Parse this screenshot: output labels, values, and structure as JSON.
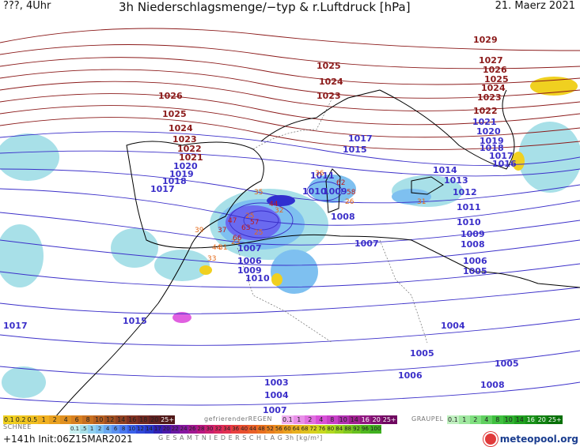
{
  "header": {
    "left": "???, 4Uhr",
    "center": "3h Niederschlagsmenge/−typ & r.Luftdruck [hPa]",
    "right": "21. Maerz 2021"
  },
  "colors": {
    "isobar_low": "#3b2fc9",
    "isobar_high": "#8b1a1a",
    "coastline": "#000000",
    "border": "#555555",
    "rain_light": "#a8e0e8",
    "rain_moderate": "#7ec0f0",
    "rain_heavy": "#6a6af0",
    "rain_very_heavy": "#3030d0",
    "snow_yellow": "#f0d020",
    "freezing_pink": "#e060e0"
  },
  "isobar_labels": [
    {
      "value": "1029",
      "tone": "high"
    },
    {
      "value": "1027",
      "tone": "high"
    },
    {
      "value": "1026",
      "tone": "high"
    },
    {
      "value": "1025",
      "tone": "high"
    },
    {
      "value": "1025",
      "tone": "high"
    },
    {
      "value": "1024",
      "tone": "high"
    },
    {
      "value": "1023",
      "tone": "high"
    },
    {
      "value": "1026",
      "tone": "high"
    },
    {
      "value": "1025",
      "tone": "high"
    },
    {
      "value": "1024",
      "tone": "high"
    },
    {
      "value": "1023",
      "tone": "high"
    },
    {
      "value": "1022",
      "tone": "high"
    },
    {
      "value": "1021",
      "tone": "high"
    },
    {
      "value": "1020",
      "tone": "low"
    },
    {
      "value": "1019",
      "tone": "low"
    },
    {
      "value": "1018",
      "tone": "low"
    },
    {
      "value": "1017",
      "tone": "low"
    },
    {
      "value": "1017",
      "tone": "low"
    },
    {
      "value": "1015",
      "tone": "low"
    },
    {
      "value": "1024",
      "tone": "high"
    },
    {
      "value": "1023",
      "tone": "high"
    },
    {
      "value": "1022",
      "tone": "high"
    },
    {
      "value": "1021",
      "tone": "low"
    },
    {
      "value": "1020",
      "tone": "low"
    },
    {
      "value": "1019",
      "tone": "low"
    },
    {
      "value": "1018",
      "tone": "low"
    },
    {
      "value": "1017",
      "tone": "low"
    },
    {
      "value": "1016",
      "tone": "low"
    },
    {
      "value": "1014",
      "tone": "low"
    },
    {
      "value": "1013",
      "tone": "low"
    },
    {
      "value": "1012",
      "tone": "low"
    },
    {
      "value": "1011",
      "tone": "low"
    },
    {
      "value": "1010",
      "tone": "low"
    },
    {
      "value": "1009",
      "tone": "low"
    },
    {
      "value": "1008",
      "tone": "low"
    },
    {
      "value": "1007",
      "tone": "low"
    },
    {
      "value": "1006",
      "tone": "low"
    },
    {
      "value": "1005",
      "tone": "low"
    },
    {
      "value": "1004",
      "tone": "low"
    },
    {
      "value": "1011",
      "tone": "low"
    },
    {
      "value": "1010",
      "tone": "low"
    },
    {
      "value": "1009",
      "tone": "low"
    },
    {
      "value": "1008",
      "tone": "low"
    },
    {
      "value": "1007",
      "tone": "low"
    },
    {
      "value": "1006",
      "tone": "low"
    },
    {
      "value": "1005",
      "tone": "low"
    },
    {
      "value": "1004",
      "tone": "low"
    },
    {
      "value": "1003",
      "tone": "low"
    },
    {
      "value": "1007",
      "tone": "low"
    },
    {
      "value": "1006",
      "tone": "low"
    },
    {
      "value": "1009",
      "tone": "low"
    },
    {
      "value": "1010",
      "tone": "low"
    },
    {
      "value": "1015",
      "tone": "low"
    },
    {
      "value": "1017",
      "tone": "low"
    },
    {
      "value": "1008",
      "tone": "low"
    },
    {
      "value": "1005",
      "tone": "low"
    },
    {
      "value": "1007",
      "tone": "low"
    },
    {
      "value": "1008",
      "tone": "low"
    }
  ],
  "precip_labels": [
    "35",
    "39",
    "33",
    "44",
    "37",
    "25",
    "23",
    "31",
    "66",
    "63",
    "58",
    "44",
    "36",
    "31",
    "47",
    "62",
    "57",
    "26",
    "25",
    "32"
  ],
  "legend": {
    "schnee_name": "SCHNEE",
    "schnee": [
      "0.1",
      "0.2",
      "0.5",
      "1",
      "2",
      "4",
      "6",
      "8",
      "10",
      "12",
      "14",
      "16",
      "18",
      "20",
      "25+"
    ],
    "regen_name": "gefrierenderREGEN",
    "regen": [
      "0.1",
      "1",
      "2",
      "4",
      "8",
      "10",
      "14",
      "16",
      "20",
      "25+"
    ],
    "graupel_name": "GRAUPEL",
    "graupel": [
      "0.1",
      "1",
      "2",
      "4",
      "8",
      "10",
      "14",
      "16",
      "20",
      "25+"
    ],
    "gesamt_name": "G E S A M T N I E D E R S C H L A G   3h   [kg/m²]",
    "gesamt": [
      "0.1",
      ".5",
      "1",
      "2",
      "4",
      "6",
      "8",
      "10",
      "12",
      "14",
      "17",
      "20",
      "22",
      "24",
      "26",
      "28",
      "30",
      "32",
      "34",
      "36",
      "40",
      "44",
      "48",
      "52",
      "56",
      "60",
      "64",
      "68",
      "72",
      "76",
      "80",
      "84",
      "88",
      "92",
      "96",
      "100"
    ]
  },
  "footer": {
    "run": "+141h  Init:06Z15MAR2021",
    "logo": "meteopool.org"
  }
}
